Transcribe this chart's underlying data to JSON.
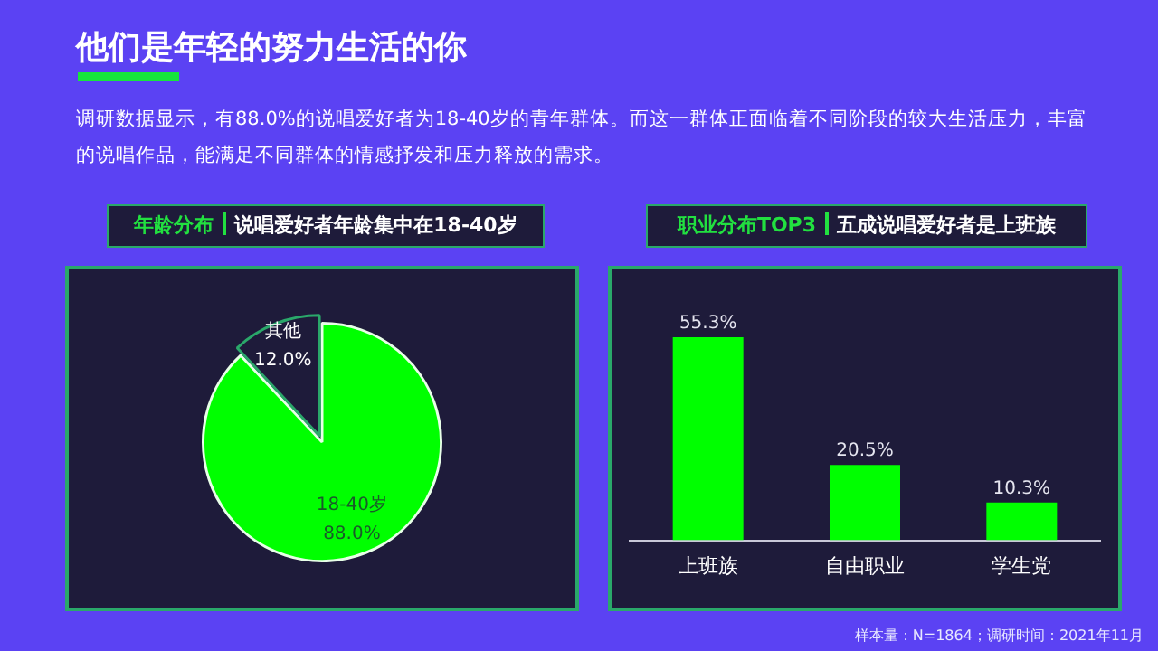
{
  "chart_data": [
    {
      "type": "pie",
      "title": "年龄分布",
      "subtitle": "说唱爱好者年龄集中在18-40岁",
      "annotations": [
        "他们是年轻的努力生活的你",
        "调研数据显示，有88.0%的说唱爱好者为18-40岁的青年群体。而这一群体正面临着不同阶段的较大生活压力，丰富的说唱作品，能满足不同群体的情感抒发和压力释放的需求。"
      ],
      "categories": [
        "18-40岁",
        "其他"
      ],
      "values": [
        88.0,
        12.0
      ],
      "colors": [
        "#00ff00",
        "#1e1b3a"
      ],
      "value_labels": [
        "88.0%",
        "12.0%"
      ],
      "legend": false
    },
    {
      "type": "bar",
      "title": "职业分布TOP3",
      "subtitle": "五成说唱爱好者是上班族",
      "annotations": [
        "样本量：N=1864；调研时间：2021年11月"
      ],
      "categories": [
        "上班族",
        "自由职业",
        "学生党"
      ],
      "values": [
        55.3,
        20.5,
        10.3
      ],
      "color": "#00ff00",
      "value_labels": [
        "55.3%",
        "20.5%",
        "10.3%"
      ],
      "grid": false,
      "legend": false
    }
  ]
}
